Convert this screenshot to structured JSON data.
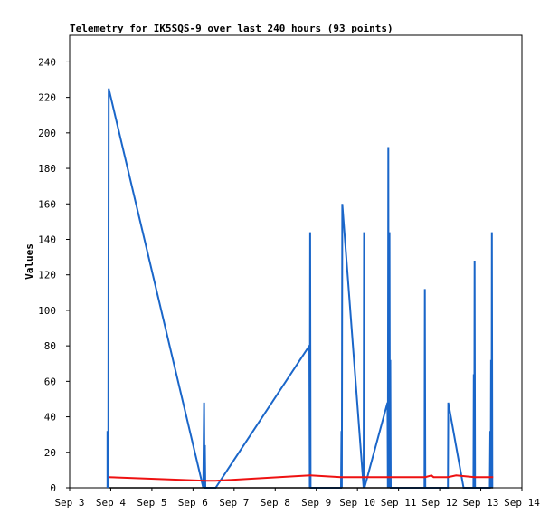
{
  "chart_data": {
    "type": "line",
    "title": "Telemetry for IK5SQS-9 over last 240 hours (93 points)",
    "xlabel": "",
    "ylabel": "Values",
    "x_tick_labels": [
      "Sep 3",
      "Sep 4",
      "Sep 5",
      "Sep 6",
      "Sep 7",
      "Sep 8",
      "Sep 9",
      "Sep 10",
      "Sep 11",
      "Sep 12",
      "Sep 13",
      "Sep 14"
    ],
    "xlim": [
      3.0,
      14.0
    ],
    "ylim": [
      0,
      255
    ],
    "y_ticks": [
      0,
      20,
      40,
      60,
      80,
      100,
      120,
      140,
      160,
      180,
      200,
      220,
      240
    ],
    "grid": false,
    "legend": "none",
    "series": [
      {
        "color": "#1a66c9",
        "points": [
          [
            3.92,
            0
          ],
          [
            3.92,
            32
          ],
          [
            3.94,
            0
          ],
          [
            3.95,
            225
          ],
          [
            6.25,
            0
          ],
          [
            6.27,
            48
          ],
          [
            6.28,
            0
          ],
          [
            6.29,
            24
          ],
          [
            6.3,
            0
          ],
          [
            6.55,
            0
          ],
          [
            8.83,
            80
          ],
          [
            8.84,
            0
          ],
          [
            8.85,
            144
          ],
          [
            8.86,
            0
          ],
          [
            9.6,
            0
          ],
          [
            9.61,
            32
          ],
          [
            9.62,
            0
          ],
          [
            9.63,
            160
          ],
          [
            10.15,
            0
          ],
          [
            10.16,
            144
          ],
          [
            10.17,
            0
          ],
          [
            10.73,
            48
          ],
          [
            10.74,
            0
          ],
          [
            10.75,
            192
          ],
          [
            10.76,
            0
          ],
          [
            10.78,
            144
          ],
          [
            10.79,
            0
          ],
          [
            10.8,
            72
          ],
          [
            10.81,
            0
          ],
          [
            11.63,
            0
          ],
          [
            11.64,
            112
          ],
          [
            11.65,
            0
          ],
          [
            12.2,
            0
          ],
          [
            12.21,
            48
          ],
          [
            12.58,
            0
          ],
          [
            12.82,
            0
          ],
          [
            12.83,
            64
          ],
          [
            12.84,
            0
          ],
          [
            12.85,
            128
          ],
          [
            12.86,
            0
          ],
          [
            13.22,
            0
          ],
          [
            13.23,
            32
          ],
          [
            13.24,
            0
          ],
          [
            13.25,
            72
          ],
          [
            13.26,
            0
          ],
          [
            13.27,
            144
          ],
          [
            13.28,
            0
          ]
        ]
      },
      {
        "color": "#ee1111",
        "points": [
          [
            3.95,
            6
          ],
          [
            6.3,
            4
          ],
          [
            6.55,
            4
          ],
          [
            8.85,
            7
          ],
          [
            9.6,
            6
          ],
          [
            10.16,
            6
          ],
          [
            10.8,
            6
          ],
          [
            11.65,
            6
          ],
          [
            11.8,
            7
          ],
          [
            11.85,
            6
          ],
          [
            12.2,
            6
          ],
          [
            12.4,
            7
          ],
          [
            12.85,
            6
          ],
          [
            13.3,
            6
          ]
        ]
      },
      {
        "color": "#000000",
        "points": [
          [
            3.95,
            0
          ],
          [
            13.3,
            0
          ]
        ]
      }
    ]
  }
}
